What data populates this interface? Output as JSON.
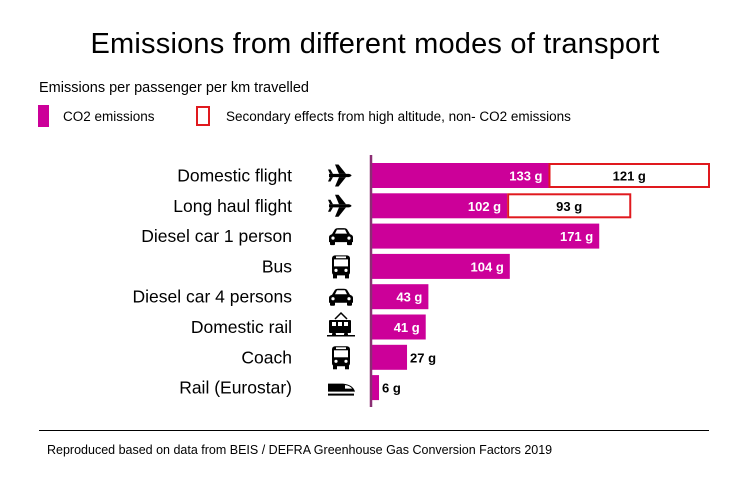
{
  "title": "Emissions from different modes of transport",
  "subtitle": "Emissions per passenger per km travelled",
  "legend": {
    "co2_label": "CO2 emissions",
    "secondary_label": "Secondary effects from high altitude, non- CO2 emissions"
  },
  "source": "Reproduced based on data from BEIS / DEFRA Greenhouse Gas Conversion Factors 2019",
  "colors": {
    "co2": "#cc0099",
    "secondary_border": "#e0191e"
  },
  "chart_data": {
    "type": "bar",
    "orientation": "horizontal",
    "stacked": true,
    "unit": "g",
    "categories": [
      "Domestic flight",
      "Long haul flight",
      "Diesel car 1 person",
      "Bus",
      "Diesel car 4 persons",
      "Domestic rail",
      "Coach",
      "Rail (Eurostar)"
    ],
    "icons": [
      "airplane-icon",
      "airplane-icon",
      "car-icon",
      "bus-icon",
      "car-icon",
      "train-icon",
      "coach-icon",
      "high-speed-train-icon"
    ],
    "series": [
      {
        "name": "CO2 emissions",
        "values": [
          133,
          102,
          171,
          104,
          43,
          41,
          27,
          6
        ]
      },
      {
        "name": "Secondary effects from high altitude, non- CO2 emissions",
        "values": [
          121,
          93,
          null,
          null,
          null,
          null,
          null,
          null
        ]
      }
    ],
    "value_labels": {
      "co2": [
        "133 g",
        "102 g",
        "171 g",
        "104 g",
        "43 g",
        "41 g",
        "27 g",
        "6 g"
      ],
      "secondary": [
        "121 g",
        "93 g",
        null,
        null,
        null,
        null,
        null,
        null
      ]
    },
    "xlim": [
      0,
      254
    ],
    "legend_position": "top-left"
  }
}
